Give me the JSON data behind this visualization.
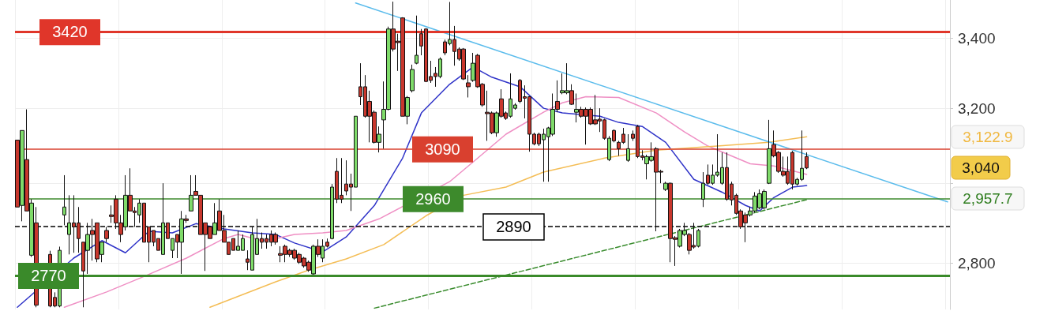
{
  "chart_data": {
    "type": "candlestick",
    "categories": [
      null,
      null,
      null,
      null,
      null,
      null,
      null,
      null,
      null,
      null,
      null,
      null,
      null,
      null,
      null,
      null,
      null,
      null,
      null,
      null,
      null,
      null,
      null,
      null,
      null,
      null,
      null,
      null,
      null,
      null,
      null,
      null,
      null,
      null,
      null,
      null,
      null,
      null,
      null,
      null,
      null,
      null,
      null,
      null,
      null,
      null,
      null,
      null,
      null,
      null,
      null,
      null,
      null,
      null,
      null,
      null,
      null,
      null,
      null,
      null,
      null,
      null,
      null,
      null,
      null,
      null,
      null,
      null,
      null,
      null,
      null,
      null,
      null,
      null,
      null,
      null,
      null,
      null,
      null,
      null,
      null,
      null,
      null,
      null,
      null,
      null,
      null,
      null,
      null,
      null,
      null,
      null,
      null,
      null,
      null,
      null,
      null,
      null,
      null,
      null,
      null,
      null,
      null,
      null,
      null,
      null,
      null,
      null,
      null,
      null,
      null,
      null,
      null,
      null,
      null,
      null,
      null,
      null,
      null,
      null,
      null,
      null,
      null,
      null,
      null,
      null,
      null,
      null,
      null,
      null,
      null,
      null,
      null,
      null,
      null,
      null,
      null,
      null,
      null,
      null,
      null,
      null,
      null,
      null,
      null,
      null,
      null,
      null,
      null,
      null,
      null,
      null,
      null,
      null,
      null,
      null,
      null,
      null,
      null,
      null,
      null,
      null,
      null,
      null,
      null,
      null,
      null,
      null,
      null,
      null,
      null,
      null,
      null,
      null,
      null,
      null,
      null,
      null,
      null,
      null,
      null,
      null,
      null,
      null,
      null,
      null,
      null,
      null,
      null,
      null,
      null,
      null,
      null,
      null,
      null,
      null,
      null,
      null,
      null
    ],
    "ohlc": [
      [
        3114,
        3114,
        2939,
        2939
      ],
      [
        2943,
        3140,
        2903,
        3140
      ],
      [
        3062,
        3198,
        2929,
        2929
      ],
      [
        2819,
        2959,
        2815,
        2949
      ],
      [
        2899,
        2939,
        2695,
        2700
      ],
      null,
      null,
      [
        2821,
        2830,
        2695,
        2698
      ],
      [
        2718,
        2730,
        2695,
        2698
      ],
      [
        2698,
        2840,
        2695,
        2831
      ],
      [
        2919,
        3021,
        2893,
        2939
      ],
      [
        2870,
        2969,
        2821,
        2899
      ],
      [
        2899,
        2969,
        2825,
        2889
      ],
      [
        2899,
        2939,
        2825,
        2860
      ],
      [
        2851,
        2851,
        2695,
        2781
      ],
      [
        2831,
        2899,
        2774,
        2870
      ],
      [
        2880,
        2909,
        2806,
        2870
      ],
      [
        2899,
        2899,
        2802,
        2810
      ],
      [
        2821,
        2851,
        2802,
        2851
      ],
      [
        2880,
        2889,
        2851,
        2860
      ],
      [
        2919,
        2943,
        2899,
        2915
      ],
      [
        2959,
        2969,
        2884,
        2899
      ],
      [
        2899,
        2919,
        2851,
        2870
      ],
      [
        2889,
        3021,
        2880,
        2969
      ],
      [
        2969,
        3039,
        2929,
        2929
      ],
      [
        2929,
        2939,
        2889,
        2925
      ],
      [
        2919,
        2959,
        2899,
        2949
      ],
      [
        2949,
        2949,
        2851,
        2851
      ],
      [
        2889,
        2889,
        2802,
        2851
      ],
      [
        2880,
        2880,
        2841,
        2851
      ],
      [
        2860,
        2860,
        2831,
        2831
      ],
      [
        2821,
        3000,
        2821,
        2899
      ],
      [
        2899,
        2899,
        2860,
        2860
      ],
      [
        2831,
        2860,
        2812,
        2860
      ],
      [
        2870,
        2870,
        2812,
        2851
      ],
      [
        2851,
        2929,
        2774,
        2909
      ],
      [
        2909,
        2919,
        2899,
        2905
      ],
      [
        2929,
        3021,
        2929,
        2969
      ],
      [
        2979,
        3021,
        2969,
        2969
      ],
      [
        2969,
        2969,
        2870,
        2870
      ],
      [
        2899,
        2899,
        2781,
        2870
      ],
      [
        2889,
        2889,
        2860,
        2860
      ],
      [
        2870,
        2949,
        2870,
        2899
      ],
      [
        2929,
        2959,
        2880,
        2880
      ],
      [
        2880,
        2919,
        2851,
        2851
      ],
      [
        2851,
        2851,
        2821,
        2821
      ],
      [
        2860,
        2860,
        2831,
        2831
      ],
      [
        2831,
        2880,
        2831,
        2841
      ],
      [
        2831,
        2870,
        2831,
        2860
      ],
      [
        2810,
        2831,
        2783,
        2802
      ],
      [
        2783,
        2889,
        2783,
        2870
      ],
      [
        2821,
        2909,
        2821,
        2860
      ],
      [
        2860,
        2875,
        2835,
        2851
      ],
      [
        2860,
        2870,
        2835,
        2851
      ],
      [
        2870,
        2880,
        2841,
        2851
      ],
      [
        2870,
        2875,
        2845,
        2851
      ],
      [
        2823,
        2841,
        2802,
        2819
      ],
      [
        2841,
        2845,
        2802,
        2821
      ],
      [
        2831,
        2835,
        2815,
        2821
      ],
      [
        2831,
        2835,
        2808,
        2812
      ],
      [
        2821,
        2825,
        2798,
        2802
      ],
      [
        2812,
        2815,
        2789,
        2793
      ],
      [
        2802,
        2806,
        2779,
        2783
      ],
      [
        2774,
        2845,
        2772,
        2841
      ],
      [
        2841,
        2858,
        2815,
        2821
      ],
      [
        2812,
        2858,
        2802,
        2841
      ],
      [
        2851,
        2860,
        2838,
        2841
      ],
      [
        2860,
        2998,
        2858,
        2990
      ],
      [
        3031,
        3066,
        2949,
        2959
      ],
      [
        2969,
        3066,
        2949,
        2959
      ],
      [
        2998,
        3060,
        2969,
        2980
      ],
      [
        2998,
        3025,
        2929,
        2990
      ],
      [
        2990,
        3179,
        2990,
        3179
      ],
      [
        3261,
        3328,
        3210,
        3233
      ],
      [
        3261,
        3294,
        3175,
        3179
      ],
      [
        3220,
        3250,
        3108,
        3179
      ],
      [
        3190,
        3195,
        3105,
        3108
      ],
      [
        3108,
        3151,
        3081,
        3130
      ],
      [
        3169,
        3276,
        3091,
        3198
      ],
      [
        3198,
        3435,
        3195,
        3428
      ],
      [
        3428,
        3510,
        3362,
        3369
      ],
      [
        3392,
        3414,
        3306,
        3388
      ],
      [
        3461,
        3463,
        3179,
        3179
      ],
      [
        3179,
        3235,
        3157,
        3231
      ],
      [
        3250,
        3324,
        3245,
        3310
      ],
      [
        3328,
        3468,
        3325,
        3351
      ],
      [
        3414,
        3428,
        3351,
        3378
      ],
      [
        3428,
        3430,
        3274,
        3276
      ],
      [
        3290,
        3335,
        3272,
        3279
      ],
      [
        3299,
        3317,
        3261,
        3290
      ],
      [
        3290,
        3345,
        3285,
        3340
      ],
      [
        3390,
        3397,
        3351,
        3358
      ],
      [
        3385,
        3509,
        3380,
        3397
      ],
      [
        3397,
        3437,
        3321,
        3362
      ],
      [
        3369,
        3374,
        3335,
        3340
      ],
      [
        3369,
        3372,
        3280,
        3283
      ],
      [
        3272,
        3294,
        3231,
        3261
      ],
      [
        3279,
        3358,
        3275,
        3328
      ],
      [
        3351,
        3355,
        3258,
        3261
      ],
      [
        3268,
        3272,
        3205,
        3210
      ],
      [
        3190,
        3250,
        3112,
        3186
      ],
      [
        3188,
        3192,
        3130,
        3134
      ],
      [
        3134,
        3192,
        3123,
        3188
      ],
      [
        3227,
        3254,
        3175,
        3179
      ],
      [
        3188,
        3192,
        3169,
        3173
      ],
      [
        3179,
        3299,
        3175,
        3227
      ],
      [
        3201,
        3215,
        3197,
        3210
      ],
      [
        3279,
        3283,
        3215,
        3220
      ],
      [
        3233,
        3265,
        3173,
        3229
      ],
      [
        3233,
        3235,
        3083,
        3130
      ],
      [
        3130,
        3134,
        3100,
        3104
      ],
      [
        3130,
        3134,
        3098,
        3104
      ],
      [
        3115,
        3145,
        3004,
        3130
      ],
      [
        3123,
        3150,
        3004,
        3147
      ],
      [
        3130,
        3242,
        3125,
        3198
      ],
      [
        3220,
        3279,
        3190,
        3198
      ],
      [
        3244,
        3299,
        3240,
        3250
      ],
      [
        3244,
        3328,
        3240,
        3250
      ],
      [
        3250,
        3268,
        3210,
        3212
      ],
      [
        3190,
        3242,
        3162,
        3198
      ],
      [
        3198,
        3205,
        3175,
        3179
      ],
      [
        3198,
        3203,
        3102,
        3179
      ],
      [
        3198,
        3203,
        3155,
        3158
      ],
      [
        3169,
        3238,
        3155,
        3158
      ],
      [
        3171,
        3201,
        3136,
        3166
      ],
      [
        3169,
        3172,
        3115,
        3119
      ],
      [
        3062,
        3125,
        3058,
        3119
      ],
      [
        3140,
        3143,
        3108,
        3112
      ],
      [
        3108,
        3112,
        3072,
        3091
      ],
      [
        3130,
        3147,
        3104,
        3108
      ],
      [
        3060,
        3130,
        3056,
        3091
      ],
      [
        3130,
        3140,
        3112,
        3119
      ],
      [
        3151,
        3155,
        3066,
        3070
      ],
      [
        3072,
        3087,
        3060,
        3068
      ],
      [
        3051,
        3075,
        3010,
        3070
      ],
      [
        3060,
        3108,
        3056,
        3070
      ],
      [
        3091,
        3095,
        2878,
        3029
      ],
      [
        3031,
        3035,
        3000,
        3029
      ],
      [
        2984,
        3004,
        2980,
        3000
      ],
      [
        3000,
        3002,
        2802,
        2860
      ],
      [
        2862,
        2866,
        2793,
        2858
      ],
      [
        2841,
        2884,
        2838,
        2880
      ],
      [
        2870,
        2899,
        2866,
        2880
      ],
      [
        2870,
        2874,
        2821,
        2831
      ],
      [
        2843,
        2899,
        2835,
        2839
      ],
      [
        2841,
        2884,
        2838,
        2880
      ],
      [
        2959,
        3029,
        2939,
        3000
      ],
      [
        3021,
        3049,
        2996,
        3000
      ],
      [
        3000,
        3049,
        2996,
        3021
      ],
      [
        3021,
        3130,
        3017,
        3029
      ],
      [
        3000,
        3081,
        2996,
        3041
      ],
      [
        3041,
        3081,
        2955,
        2959
      ],
      [
        2998,
        3004,
        2943,
        2957
      ],
      [
        2969,
        2973,
        2919,
        2923
      ],
      [
        2929,
        2933,
        2884,
        2889
      ],
      [
        2919,
        2925,
        2851,
        2899
      ],
      [
        2919,
        2939,
        2915,
        2929
      ],
      [
        2929,
        2977,
        2925,
        2967
      ],
      [
        2937,
        2984,
        2933,
        2973
      ],
      [
        2937,
        2984,
        2933,
        2979
      ],
      [
        3000,
        3169,
        2998,
        3091
      ],
      [
        3102,
        3140,
        3068,
        3072
      ],
      [
        3081,
        3085,
        3027,
        3031
      ],
      [
        3031,
        3070,
        3017,
        3021
      ],
      [
        3031,
        3070,
        2996,
        3000
      ],
      [
        3081,
        3085,
        2984,
        2998
      ],
      [
        2998,
        3014,
        2994,
        3010
      ],
      [
        3010,
        3140,
        3006,
        3039
      ],
      [
        3070,
        3081,
        3037,
        3040
      ],
      null,
      null,
      null,
      null,
      null,
      null,
      null,
      null,
      null,
      null,
      null,
      null,
      null,
      null,
      null,
      null,
      null,
      null,
      null,
      null,
      null,
      null,
      null,
      null,
      null,
      null,
      null,
      null,
      null,
      null
    ],
    "series": [
      {
        "type": "line",
        "color": "#2f33c8",
        "values": [
          2695,
          null,
          null,
          null,
          null,
          null,
          null,
          null,
          null,
          null,
          null,
          null,
          2812,
          null,
          null,
          null,
          null,
          null,
          2855,
          null,
          null,
          null,
          null,
          2825,
          null,
          null,
          null,
          null,
          2878,
          null,
          null,
          null,
          null,
          2874,
          null,
          null,
          null,
          null,
          2897,
          null,
          null,
          null,
          null,
          null,
          2884,
          null,
          null,
          null,
          null,
          null,
          2874,
          null,
          null,
          null,
          null,
          2870,
          null,
          null,
          null,
          2849,
          null,
          null,
          null,
          null,
          null,
          2827,
          null,
          null,
          null,
          null,
          2864,
          null,
          null,
          null,
          null,
          null,
          2943,
          null,
          null,
          null,
          null,
          null,
          3066,
          null,
          null,
          null,
          3188,
          null,
          null,
          null,
          null,
          null,
          3268,
          null,
          null,
          null,
          null,
          3317,
          null,
          null,
          null,
          3288,
          null,
          null,
          null,
          null,
          null,
          3261,
          null,
          null,
          null,
          null,
          3201,
          null,
          null,
          null,
          3188,
          null,
          null,
          null,
          null,
          null,
          null,
          null,
          3179,
          null,
          null,
          null,
          3162,
          null,
          null,
          null,
          null,
          3151,
          null,
          null,
          null,
          null,
          3108,
          null,
          null,
          null,
          null,
          null,
          3010,
          null,
          null,
          null,
          null,
          null,
          2977,
          null,
          null,
          null,
          null,
          2943,
          null,
          null,
          2929,
          null,
          null,
          2963,
          null,
          null,
          null,
          2990,
          null,
          null,
          2994,
          null,
          null,
          null,
          null,
          null,
          null,
          null,
          null,
          null,
          null,
          null,
          null,
          null,
          null,
          null,
          null,
          null,
          null,
          null,
          null,
          null,
          null,
          null,
          null,
          null,
          null,
          null,
          null,
          null,
          null
        ]
      },
      {
        "type": "line",
        "color": "#ef8fc4",
        "values": [
          null,
          null,
          null,
          null,
          null,
          null,
          null,
          null,
          null,
          null,
          2695,
          null,
          null,
          null,
          null,
          null,
          null,
          null,
          null,
          2731,
          null,
          null,
          null,
          null,
          null,
          null,
          null,
          2768,
          null,
          null,
          null,
          null,
          null,
          null,
          null,
          null,
          2812,
          null,
          null,
          null,
          null,
          null,
          null,
          null,
          2860,
          null,
          null,
          2870,
          null,
          null,
          null,
          null,
          2855,
          null,
          null,
          2860,
          null,
          null,
          null,
          2870,
          null,
          null,
          null,
          null,
          null,
          2874,
          null,
          null,
          null,
          null,
          2880,
          null,
          null,
          null,
          null,
          null,
          null,
          2909,
          null,
          null,
          null,
          null,
          null,
          null,
          null,
          null,
          null,
          null,
          null,
          null,
          null,
          null,
          3004,
          null,
          null,
          null,
          null,
          null,
          3066,
          null,
          null,
          null,
          null,
          null,
          3130,
          null,
          null,
          null,
          null,
          null,
          null,
          null,
          3190,
          null,
          null,
          null,
          3216,
          null,
          null,
          null,
          null,
          3233,
          null,
          null,
          null,
          null,
          null,
          null,
          3231,
          null,
          null,
          null,
          null,
          null,
          null,
          null,
          3188,
          null,
          null,
          null,
          null,
          null,
          3136,
          null,
          null,
          null,
          null,
          3098,
          null,
          null,
          null,
          null,
          null,
          null,
          null,
          null,
          3051,
          null,
          null,
          null,
          null,
          3045,
          null,
          null,
          null,
          null,
          null,
          null,
          3023,
          null,
          null,
          null,
          null,
          null,
          null,
          null,
          null,
          null,
          null,
          null,
          null,
          null,
          null,
          null,
          null,
          null,
          null,
          null,
          null,
          null,
          null,
          null,
          null,
          null,
          null,
          null,
          null,
          null,
          null
        ]
      },
      {
        "type": "line",
        "color": "#f4bd55",
        "values": [
          null,
          null,
          null,
          null,
          null,
          null,
          null,
          null,
          null,
          null,
          null,
          null,
          null,
          null,
          null,
          null,
          null,
          null,
          null,
          null,
          null,
          null,
          null,
          null,
          null,
          null,
          null,
          null,
          null,
          null,
          null,
          null,
          null,
          null,
          null,
          null,
          null,
          null,
          null,
          null,
          null,
          2695,
          null,
          null,
          null,
          null,
          null,
          null,
          null,
          null,
          null,
          null,
          null,
          null,
          null,
          2755,
          null,
          null,
          null,
          null,
          null,
          null,
          2783,
          null,
          null,
          null,
          null,
          null,
          null,
          null,
          2810,
          null,
          null,
          null,
          null,
          null,
          null,
          null,
          2845,
          null,
          null,
          null,
          null,
          null,
          null,
          null,
          null,
          2917,
          null,
          null,
          null,
          null,
          null,
          null,
          null,
          2969,
          null,
          null,
          null,
          null,
          null,
          null,
          null,
          null,
          2990,
          null,
          null,
          null,
          null,
          null,
          null,
          null,
          3029,
          null,
          null,
          null,
          null,
          null,
          null,
          null,
          null,
          null,
          null,
          null,
          null,
          3066,
          null,
          null,
          null,
          null,
          null,
          null,
          null,
          null,
          null,
          null,
          3087,
          null,
          null,
          null,
          null,
          null,
          null,
          null,
          null,
          null,
          null,
          null,
          null,
          3098,
          null,
          null,
          null,
          null,
          null,
          null,
          null,
          null,
          null,
          null,
          3108,
          null,
          null,
          null,
          null,
          null,
          null,
          null,
          3122.9,
          null,
          null,
          null,
          null,
          null,
          null,
          null,
          null,
          null,
          null,
          null,
          null,
          null,
          null,
          null,
          null,
          null,
          null,
          null,
          null,
          null,
          null,
          null,
          null,
          null,
          null,
          null,
          null,
          null,
          null
        ]
      },
      {
        "type": "line",
        "color": "#5bbcec",
        "values": [
          null,
          null,
          null,
          null,
          null,
          null,
          null,
          null,
          null,
          null,
          null,
          null,
          null,
          null,
          null,
          null,
          null,
          null,
          null,
          null,
          null,
          null,
          null,
          null,
          null,
          null,
          null,
          null,
          null,
          null,
          null,
          null,
          null,
          null,
          null,
          null,
          null,
          null,
          null,
          null,
          null,
          null,
          null,
          null,
          null,
          null,
          null,
          null,
          null,
          null,
          null,
          null,
          null,
          null,
          null,
          null,
          null,
          null,
          null,
          null,
          null,
          null,
          null,
          null,
          null,
          null,
          null,
          null,
          null,
          null,
          null,
          null,
          3506,
          null,
          null,
          null,
          null,
          null,
          null,
          null,
          null,
          null,
          null,
          null,
          null,
          null,
          null,
          null,
          null,
          null,
          null,
          null,
          null,
          null,
          null,
          null,
          null,
          null,
          null,
          null,
          null,
          null,
          null,
          null,
          null,
          null,
          null,
          null,
          null,
          null,
          null,
          null,
          null,
          null,
          null,
          null,
          null,
          null,
          null,
          null,
          null,
          null,
          null,
          null,
          null,
          null,
          null,
          null,
          null,
          null,
          null,
          null,
          null,
          null,
          null,
          null,
          null,
          null,
          null,
          null,
          null,
          null,
          null,
          null,
          null,
          null,
          null,
          null,
          null,
          null,
          null,
          null,
          null,
          null,
          null,
          null,
          null,
          null,
          null,
          null,
          null,
          null,
          null,
          null,
          null,
          null,
          null,
          null,
          null,
          null,
          null,
          null,
          null,
          null,
          null,
          null,
          null,
          null,
          null,
          null,
          null,
          null,
          null,
          null,
          null,
          null,
          null,
          null,
          null,
          null,
          null,
          null,
          null,
          null,
          null,
          null,
          null,
          null,
          2952
        ]
      },
      {
        "type": "line",
        "color": "#3a8c2e",
        "line_style": "dashed",
        "values": [
          null,
          null,
          null,
          null,
          null,
          null,
          null,
          null,
          null,
          null,
          null,
          null,
          null,
          null,
          null,
          null,
          null,
          null,
          null,
          null,
          null,
          null,
          null,
          null,
          null,
          null,
          null,
          null,
          null,
          null,
          null,
          null,
          null,
          null,
          null,
          null,
          null,
          null,
          null,
          null,
          null,
          null,
          null,
          null,
          null,
          null,
          null,
          null,
          null,
          null,
          null,
          null,
          null,
          null,
          null,
          null,
          null,
          null,
          null,
          null,
          null,
          null,
          null,
          null,
          null,
          null,
          null,
          null,
          null,
          null,
          null,
          null,
          null,
          null,
          null,
          null,
          2693,
          null,
          null,
          null,
          null,
          null,
          null,
          null,
          null,
          null,
          null,
          null,
          null,
          null,
          null,
          null,
          null,
          null,
          null,
          null,
          null,
          null,
          null,
          null,
          null,
          null,
          null,
          null,
          null,
          null,
          null,
          null,
          null,
          null,
          null,
          null,
          null,
          null,
          null,
          null,
          null,
          null,
          null,
          null,
          null,
          null,
          null,
          null,
          null,
          null,
          null,
          null,
          null,
          null,
          null,
          null,
          null,
          null,
          null,
          null,
          null,
          null,
          null,
          null,
          null,
          null,
          null,
          null,
          null,
          null,
          null,
          null,
          null,
          null,
          null,
          null,
          null,
          null,
          null,
          null,
          null,
          null,
          null,
          null,
          null,
          null,
          null,
          null,
          null,
          null,
          null,
          null,
          2957.7,
          null,
          null,
          null,
          null,
          null,
          null,
          null,
          null,
          null,
          null,
          null,
          null,
          null,
          null,
          null,
          null,
          null,
          null,
          null,
          null,
          null,
          null,
          null,
          null,
          null,
          null,
          null,
          null,
          null,
          null
        ]
      }
    ],
    "ref_lines": [
      {
        "axis": "y",
        "value": 3420,
        "label": "3420",
        "color": "#e0362a"
      },
      {
        "axis": "y",
        "value": 3090,
        "label": "3090",
        "color": "#d9402f"
      },
      {
        "axis": "y",
        "value": 2960,
        "label": "2960",
        "color": "#3d8a2c"
      },
      {
        "axis": "y",
        "value": 2890,
        "label": "2890",
        "color": "#000000",
        "line_style": "dashed"
      },
      {
        "axis": "y",
        "value": 2770,
        "label": "2770",
        "color": "#3a8a2a"
      }
    ],
    "annotations": [
      "3,122.9",
      "3,040",
      "2,957.7"
    ],
    "ylim": [
      2690,
      3515
    ],
    "yticks": [
      {
        "value": 2800,
        "label": "2,800"
      },
      {
        "value": 3000,
        "label": null
      },
      {
        "value": 3200,
        "label": "3,200"
      },
      {
        "value": 3400,
        "label": "3,400"
      }
    ],
    "log": true,
    "grid": true,
    "tick_labels": "y"
  }
}
